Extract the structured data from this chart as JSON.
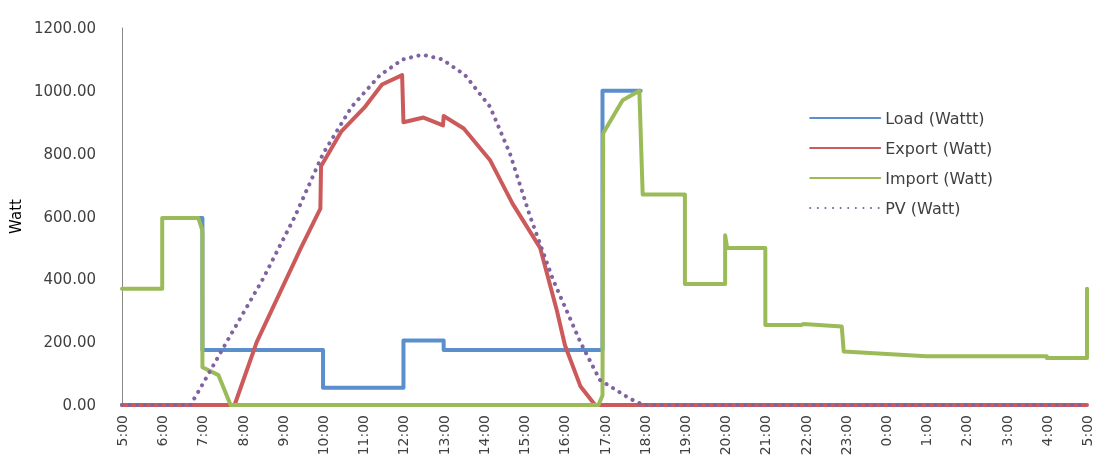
{
  "chart_data": {
    "type": "line",
    "ylabel": "Watt",
    "xlim": [
      "--01-01T05:00",
      "--01-02T05:00"
    ],
    "ylim": [
      0,
      1200
    ],
    "xticks": [
      {
        "value": "--01-01T05:00",
        "label": "5:00"
      },
      {
        "value": "--01-01T06:00",
        "label": "6:00"
      },
      {
        "value": "--01-01T07:00",
        "label": "7:00"
      },
      {
        "value": "--01-01T08:00",
        "label": "8:00"
      },
      {
        "value": "--01-01T09:00",
        "label": "9:00"
      },
      {
        "value": "--01-01T10:00",
        "label": "10:00"
      },
      {
        "value": "--01-01T11:00",
        "label": "11:00"
      },
      {
        "value": "--01-01T12:00",
        "label": "12:00"
      },
      {
        "value": "--01-01T13:00",
        "label": "13:00"
      },
      {
        "value": "--01-01T14:00",
        "label": "14:00"
      },
      {
        "value": "--01-01T15:00",
        "label": "15:00"
      },
      {
        "value": "--01-01T16:00",
        "label": "16:00"
      },
      {
        "value": "--01-01T17:00",
        "label": "17:00"
      },
      {
        "value": "--01-01T18:00",
        "label": "18:00"
      },
      {
        "value": "--01-01T19:00",
        "label": "19:00"
      },
      {
        "value": "--01-01T20:00",
        "label": "20:00"
      },
      {
        "value": "--01-01T21:00",
        "label": "21:00"
      },
      {
        "value": "--01-01T22:00",
        "label": "22:00"
      },
      {
        "value": "--01-01T23:00",
        "label": "23:00"
      },
      {
        "value": "--01-02T00:00",
        "label": "0:00"
      },
      {
        "value": "--01-02T01:00",
        "label": "1:00"
      },
      {
        "value": "--01-02T02:00",
        "label": "2:00"
      },
      {
        "value": "--01-02T03:00",
        "label": "3:00"
      },
      {
        "value": "--01-02T04:00",
        "label": "4:00"
      },
      {
        "value": "--01-02T05:00",
        "label": "5:00"
      }
    ],
    "yticks": [
      {
        "value": 0,
        "label": "0.00"
      },
      {
        "value": 200,
        "label": "200.00"
      },
      {
        "value": 400,
        "label": "400.00"
      },
      {
        "value": 600,
        "label": "600.00"
      },
      {
        "value": 800,
        "label": "800.00"
      },
      {
        "value": 1000,
        "label": "1000.00"
      },
      {
        "value": 1200,
        "label": "1200.00"
      }
    ],
    "grid": false,
    "legend": "right",
    "marker": "none",
    "series": [
      {
        "name": "Load (Wattt)",
        "color": "#5b8fcc",
        "line_style": "solid",
        "x": [
          "--01-01T06:54",
          "--01-01T07:00",
          "--01-01T07:00",
          "--01-01T10:00",
          "--01-01T10:00",
          "--01-01T12:00",
          "--01-01T12:00",
          "--01-01T13:00",
          "--01-01T13:00",
          "--01-01T16:57",
          "--01-01T16:57",
          "--01-01T17:54"
        ],
        "values": [
          595,
          595,
          175,
          175,
          55,
          55,
          205,
          205,
          175,
          175,
          1000,
          1000
        ]
      },
      {
        "name": "Export (Watt)",
        "color": "#cc5a5a",
        "line_style": "solid",
        "x": [
          "--01-01T05:00",
          "--01-01T07:48",
          "--01-01T08:21",
          "--01-01T09:27",
          "--01-01T09:56",
          "--01-01T09:57",
          "--01-01T10:27",
          "--01-01T11:03",
          "--01-01T11:28",
          "--01-01T11:58",
          "--01-01T12:00",
          "--01-01T12:30",
          "--01-01T12:59",
          "--01-01T13:00",
          "--01-01T13:30",
          "--01-01T14:09",
          "--01-01T14:43",
          "--01-01T15:24",
          "--01-01T15:49",
          "--01-01T16:01",
          "--01-01T16:24",
          "--01-01T16:46",
          "--01-02T05:00"
        ],
        "values": [
          0,
          0,
          200,
          500,
          625,
          760,
          870,
          950,
          1020,
          1050,
          900,
          915,
          890,
          920,
          880,
          780,
          640,
          500,
          300,
          190,
          60,
          0,
          0
        ]
      },
      {
        "name": "Import (Watt)",
        "color": "#9bbb59",
        "line_style": "solid",
        "x": [
          "--01-01T05:00",
          "--01-01T06:00",
          "--01-01T06:00",
          "--01-01T06:54",
          "--01-01T07:00",
          "--01-01T07:00",
          "--01-01T07:24",
          "--01-01T07:42",
          "--01-01T16:51",
          "--01-01T16:57",
          "--01-01T16:58",
          "--01-01T17:27",
          "--01-01T17:52",
          "--01-01T17:57",
          "--01-01T19:00",
          "--01-01T19:00",
          "--01-01T20:00",
          "--01-01T20:00",
          "--01-01T20:03",
          "--01-01T21:00",
          "--01-01T21:00",
          "--01-01T21:54",
          "--01-01T21:57",
          "--01-01T22:54",
          "--01-01T22:57",
          "--01-02T01:00",
          "--01-02T04:00",
          "--01-02T04:00",
          "--01-02T05:00",
          "--01-02T05:00"
        ],
        "values": [
          370,
          370,
          595,
          595,
          555,
          120,
          95,
          0,
          0,
          30,
          865,
          970,
          1000,
          670,
          670,
          385,
          385,
          540,
          500,
          500,
          255,
          255,
          258,
          250,
          170,
          155,
          155,
          150,
          150,
          370
        ]
      },
      {
        "name": "PV (Watt)",
        "color": "#8064a2",
        "line_style": "dotted",
        "x": [
          "--01-01T05:00",
          "--01-01T06:42",
          "--01-01T06:56",
          "--01-01T07:36",
          "--01-01T08:30",
          "--01-01T09:18",
          "--01-01T10:00",
          "--01-01T10:43",
          "--01-01T11:25",
          "--01-01T11:59",
          "--01-01T12:28",
          "--01-01T12:58",
          "--01-01T13:32",
          "--01-01T14:09",
          "--01-01T14:39",
          "--01-01T15:09",
          "--01-01T15:43",
          "--01-01T16:24",
          "--01-01T16:53",
          "--01-01T17:38",
          "--01-01T17:58",
          "--01-02T05:00"
        ],
        "values": [
          0,
          0,
          50,
          200,
          400,
          600,
          800,
          950,
          1050,
          1100,
          1115,
          1100,
          1050,
          950,
          800,
          600,
          400,
          200,
          80,
          20,
          0,
          0
        ]
      }
    ]
  }
}
